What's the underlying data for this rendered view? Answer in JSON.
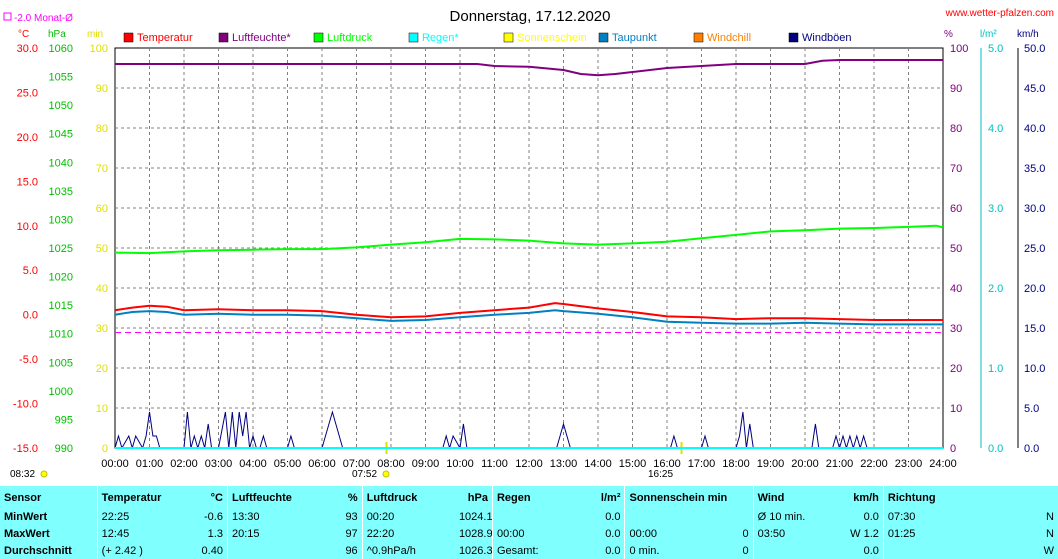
{
  "page": {
    "title": "Donnerstag, 17.12.2020",
    "site": "www.wetter-pfalzen.com",
    "month_avg_legend": "-2.0 Monat-Ø",
    "sunrise": "07:52",
    "sunset": "16:25",
    "time_left": "08:32"
  },
  "axis_units": {
    "temp": "°C",
    "press": "hPa",
    "min": "min",
    "pct": "%",
    "rain": "l/m²",
    "wind": "km/h"
  },
  "axis_ticks": {
    "temp": [
      "30.0",
      "25.0",
      "20.0",
      "15.0",
      "10.0",
      "5.0",
      "0.0",
      "-5.0",
      "-10.0",
      "-15.0"
    ],
    "press": [
      "1060",
      "1055",
      "1050",
      "1045",
      "1040",
      "1035",
      "1030",
      "1025",
      "1020",
      "1015",
      "1010",
      "1005",
      "1000",
      "995",
      "990"
    ],
    "min": [
      "100",
      "90",
      "80",
      "70",
      "60",
      "50",
      "40",
      "30",
      "20",
      "10",
      "0"
    ],
    "pct": [
      "100",
      "90",
      "80",
      "70",
      "60",
      "50",
      "40",
      "30",
      "20",
      "10",
      "0"
    ],
    "rain": [
      "5.0",
      "4.0",
      "3.0",
      "2.0",
      "1.0",
      "0.0"
    ],
    "wind": [
      "50.0",
      "45.0",
      "40.0",
      "35.0",
      "30.0",
      "25.0",
      "20.0",
      "15.0",
      "10.0",
      "5.0",
      "0.0"
    ],
    "hours": [
      "00:00",
      "01:00",
      "02:00",
      "03:00",
      "04:00",
      "05:00",
      "06:00",
      "07:00",
      "08:00",
      "09:00",
      "10:00",
      "11:00",
      "12:00",
      "13:00",
      "14:00",
      "15:00",
      "16:00",
      "17:00",
      "18:00",
      "19:00",
      "20:00",
      "21:00",
      "22:00",
      "23:00",
      "24:00"
    ]
  },
  "legend": [
    {
      "name": "Temperatur",
      "color": "#ff0000"
    },
    {
      "name": "Luftfeuchte*",
      "color": "#800080"
    },
    {
      "name": "Luftdruck",
      "color": "#00ff00"
    },
    {
      "name": "Regen*",
      "color": "#00ffff"
    },
    {
      "name": "Sonnenschein",
      "color": "#ffff00"
    },
    {
      "name": "Taupunkt",
      "color": "#0080c0"
    },
    {
      "name": "Windchill",
      "color": "#ff8000"
    },
    {
      "name": "Windböen",
      "color": "#000080"
    }
  ],
  "colors": {
    "temp_axis": "#ff0000",
    "press_axis": "#00c000",
    "min_axis": "#e0e000",
    "pct_axis": "#800080",
    "rain_axis": "#00c0c0",
    "wind_axis": "#000080",
    "table_bg": "#80ffff"
  },
  "chart_data": {
    "type": "line",
    "title": "Donnerstag, 17.12.2020",
    "x_unit": "hours",
    "xlim": [
      0,
      24
    ],
    "ylim_temp": [
      -15,
      30
    ],
    "ylim_press": [
      990,
      1060
    ],
    "ylim_pct": [
      0,
      100
    ],
    "ylim_wind": [
      0,
      50
    ],
    "ylim_rain": [
      0,
      5
    ],
    "grid": true,
    "month_avg_temp": -2.0,
    "series": [
      {
        "name": "Temperatur",
        "axis": "temp",
        "color": "#ff0000",
        "x": [
          0,
          0.5,
          1,
          1.5,
          2,
          3,
          4,
          5,
          6,
          7,
          8,
          9,
          10,
          11,
          12,
          12.75,
          13,
          14,
          15,
          16,
          17,
          18,
          19,
          20,
          21,
          22,
          23,
          24
        ],
        "y": [
          0.5,
          0.8,
          1.0,
          0.9,
          0.5,
          0.6,
          0.5,
          0.5,
          0.4,
          0.0,
          -0.3,
          -0.2,
          0.2,
          0.5,
          0.8,
          1.3,
          1.2,
          0.7,
          0.3,
          -0.2,
          -0.3,
          -0.5,
          -0.4,
          -0.4,
          -0.5,
          -0.6,
          -0.6,
          -0.6
        ]
      },
      {
        "name": "Taupunkt",
        "axis": "temp",
        "color": "#0080c0",
        "x": [
          0,
          0.5,
          1,
          1.5,
          2,
          3,
          4,
          5,
          6,
          7,
          8,
          9,
          10,
          11,
          12,
          12.75,
          13,
          14,
          15,
          16,
          17,
          18,
          19,
          20,
          21,
          22,
          23,
          24
        ],
        "y": [
          0.0,
          0.3,
          0.4,
          0.3,
          0.0,
          0.1,
          0.0,
          0.0,
          -0.1,
          -0.4,
          -0.7,
          -0.6,
          -0.3,
          0.0,
          0.2,
          0.5,
          0.4,
          0.1,
          -0.3,
          -0.8,
          -0.9,
          -1.0,
          -1.0,
          -0.9,
          -1.0,
          -1.1,
          -1.1,
          -1.1
        ]
      },
      {
        "name": "Luftfeuchte*",
        "axis": "pct",
        "color": "#800080",
        "x": [
          0,
          1,
          2,
          3,
          4,
          5,
          6,
          7,
          8,
          9,
          10,
          10.5,
          11,
          12,
          13,
          13.5,
          14,
          14.5,
          15,
          16,
          17,
          18,
          19,
          20,
          20.5,
          21,
          22,
          23,
          24
        ],
        "y": [
          96,
          96,
          96,
          96,
          96,
          96,
          96,
          96,
          96,
          96,
          96,
          96,
          95.5,
          95.3,
          94.5,
          93.5,
          93.2,
          93.5,
          94,
          95,
          95.5,
          96,
          96,
          96,
          96.8,
          97,
          97,
          97,
          97
        ]
      },
      {
        "name": "Luftdruck",
        "axis": "press",
        "color": "#00ff00",
        "x": [
          0,
          1,
          2,
          3,
          4,
          5,
          6,
          7,
          8,
          9,
          10,
          11,
          12,
          13,
          14,
          15,
          16,
          17,
          18,
          19,
          20,
          21,
          22,
          23,
          23.8,
          24
        ],
        "y": [
          1024.2,
          1024.1,
          1024.4,
          1024.6,
          1024.7,
          1024.8,
          1024.8,
          1025.1,
          1025.6,
          1026.0,
          1026.6,
          1026.5,
          1026.3,
          1025.8,
          1025.6,
          1025.8,
          1026.1,
          1026.7,
          1027.3,
          1027.9,
          1028.1,
          1028.4,
          1028.5,
          1028.7,
          1028.9,
          1028.6
        ]
      },
      {
        "name": "Windböen",
        "axis": "wind",
        "color": "#000080",
        "x": [
          0,
          0.1,
          0.2,
          0.4,
          0.5,
          0.6,
          0.8,
          0.9,
          1.0,
          1.1,
          1.2,
          1.3,
          1.4,
          2.0,
          2.1,
          2.2,
          2.3,
          2.4,
          2.5,
          2.6,
          2.7,
          2.8,
          3.0,
          3.2,
          3.3,
          3.4,
          3.5,
          3.6,
          3.7,
          3.8,
          3.9,
          4.0,
          4.1,
          4.2,
          4.3,
          4.4,
          5.0,
          5.1,
          5.2,
          6.0,
          6.3,
          6.6,
          9.5,
          9.6,
          9.7,
          9.8,
          10.0,
          10.1,
          10.2,
          12.8,
          13.0,
          13.2,
          16.1,
          16.2,
          16.3,
          17.0,
          17.1,
          17.2,
          18.0,
          18.1,
          18.2,
          18.3,
          18.4,
          18.5,
          18.6,
          20.2,
          20.3,
          20.4,
          20.8,
          20.9,
          21.0,
          21.1,
          21.2,
          21.3,
          21.4,
          21.5,
          21.6,
          21.7,
          21.8,
          24
        ],
        "y": [
          0,
          1.5,
          0,
          1.5,
          0,
          1.5,
          0,
          1.5,
          4.5,
          1.5,
          1.5,
          0,
          0,
          0,
          4.5,
          0,
          1.5,
          0,
          1.5,
          0,
          3,
          0,
          0,
          4.5,
          0,
          4.5,
          0,
          4.5,
          1.5,
          4.5,
          0,
          1.5,
          0,
          0,
          1.5,
          0,
          0,
          1.5,
          0,
          0,
          4.5,
          0,
          0,
          1.5,
          0,
          1.5,
          0,
          3,
          0,
          0,
          3,
          0,
          0,
          1.5,
          0,
          0,
          1.5,
          0,
          0,
          1.5,
          4.5,
          0,
          3,
          0,
          0,
          0,
          3,
          0,
          0,
          1.5,
          0,
          1.5,
          0,
          1.5,
          0,
          1.5,
          0,
          1.5,
          0,
          0
        ]
      },
      {
        "name": "Regen*",
        "axis": "rain",
        "color": "#00ffff",
        "x": [
          0,
          24
        ],
        "y": [
          0,
          0
        ]
      }
    ]
  },
  "table": {
    "headers": {
      "sensor": "Sensor",
      "temp": "Temperatur",
      "temp_unit": "°C",
      "hum": "Luftfeuchte",
      "hum_unit": "%",
      "press": "Luftdruck",
      "press_unit": "hPa",
      "rain": "Regen",
      "rain_unit": "l/m²",
      "sun": "Sonnenschein min",
      "wind": "Wind",
      "wind_unit": "km/h",
      "dir": "Richtung"
    },
    "rows": [
      {
        "label": "MinWert",
        "temp_time": "22:25",
        "temp_val": "-0.6",
        "hum_time": "13:30",
        "hum_val": "93",
        "press_time": "00:20",
        "press_val": "1024.1",
        "rain_time": "",
        "rain_val": "0.0",
        "sun_time": "",
        "sun_val": "",
        "wind_time": "Ø 10 min.",
        "wind_val": "0.0",
        "dir_time": "07:30",
        "dir_val": "N"
      },
      {
        "label": "MaxWert",
        "temp_time": "12:45",
        "temp_val": "1.3",
        "hum_time": "20:15",
        "hum_val": "97",
        "press_time": "22:20",
        "press_val": "1028.9",
        "rain_time": "00:00",
        "rain_val": "0.0",
        "sun_time": "00:00",
        "sun_val": "0",
        "wind_time": "03:50",
        "wind_val": "W 1.2",
        "dir_time": "01:25",
        "dir_val": "N"
      },
      {
        "label": "Durchschnitt",
        "temp_time": "(+ 2.42 )",
        "temp_val": "0.40",
        "hum_time": "",
        "hum_val": "96",
        "press_time": "^0.9hPa/h",
        "press_val": "1026.3",
        "rain_time": "Gesamt:",
        "rain_val": "0.0",
        "sun_time": "0 min.",
        "sun_val": "0",
        "wind_time": "",
        "wind_val": "0.0",
        "dir_time": "",
        "dir_val": "W"
      }
    ]
  }
}
